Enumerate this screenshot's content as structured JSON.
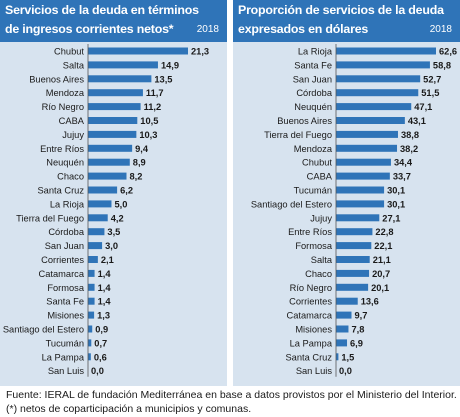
{
  "left_panel": {
    "title_line1": "Servicios de la deuda en términos",
    "title_line2": "de ingresos corrientes netos*",
    "year": "2018"
  },
  "right_panel": {
    "title_line1": "Proporción de servicios de la deuda",
    "title_line2": "expresados en dólares",
    "year": "2018"
  },
  "footer": {
    "source": "Fuente: IERAL de fundación Mediterránea en base a datos provistos por el Ministerio del Interior.",
    "note": "(*) netos de coparticipación a municipios y comunas."
  },
  "colors": {
    "header_bg": "#2f74b8",
    "panel_bg": "#d7e3ef",
    "bar": "#2f74b8"
  },
  "chart_data": [
    {
      "type": "bar",
      "orientation": "horizontal",
      "title": "Servicios de la deuda en términos de ingresos corrientes netos*",
      "categories": [
        "Chubut",
        "Salta",
        "Buenos Aires",
        "Mendoza",
        "Río Negro",
        "CABA",
        "Jujuy",
        "Entre Ríos",
        "Neuquén",
        "Chaco",
        "Santa Cruz",
        "La Rioja",
        "Tierra del Fuego",
        "Córdoba",
        "San Juan",
        "Corrientes",
        "Catamarca",
        "Formosa",
        "Santa Fe",
        "Misiones",
        "Santiago del Estero",
        "Tucumán",
        "La Pampa",
        "San Luis"
      ],
      "values": [
        21.3,
        14.9,
        13.5,
        11.7,
        11.2,
        10.5,
        10.3,
        9.4,
        8.9,
        8.2,
        6.2,
        5.0,
        4.2,
        3.5,
        3.0,
        2.1,
        1.4,
        1.4,
        1.4,
        1.3,
        0.9,
        0.7,
        0.6,
        0.0
      ],
      "value_labels": [
        "21,3",
        "14,9",
        "13,5",
        "11,7",
        "11,2",
        "10,5",
        "10,3",
        "9,4",
        "8,9",
        "8,2",
        "6,2",
        "5,0",
        "4,2",
        "3,5",
        "3,0",
        "2,1",
        "1,4",
        "1,4",
        "1,4",
        "1,3",
        "0,9",
        "0,7",
        "0,6",
        "0,0"
      ],
      "xlim": [
        0,
        21.3
      ],
      "grid": false,
      "legend": "none"
    },
    {
      "type": "bar",
      "orientation": "horizontal",
      "title": "Proporción de servicios de la deuda expresados en dólares",
      "categories": [
        "La Rioja",
        "Santa Fe",
        "San Juan",
        "Córdoba",
        "Neuquén",
        "Buenos Aires",
        "Tierra del Fuego",
        "Mendoza",
        "Chubut",
        "CABA",
        "Tucumán",
        "Santiago del Estero",
        "Jujuy",
        "Entre Ríos",
        "Formosa",
        "Salta",
        "Chaco",
        "Río Negro",
        "Corrientes",
        "Catamarca",
        "Misiones",
        "La Pampa",
        "Santa Cruz",
        "San Luis"
      ],
      "values": [
        62.6,
        58.8,
        52.7,
        51.5,
        47.1,
        43.1,
        38.8,
        38.2,
        34.4,
        33.7,
        30.1,
        30.1,
        27.1,
        22.8,
        22.1,
        21.1,
        20.7,
        20.1,
        13.6,
        9.7,
        7.8,
        6.9,
        1.5,
        0.0
      ],
      "value_labels": [
        "62,6",
        "58,8",
        "52,7",
        "51,5",
        "47,1",
        "43,1",
        "38,8",
        "38,2",
        "34,4",
        "33,7",
        "30,1",
        "30,1",
        "27,1",
        "22,8",
        "22,1",
        "21,1",
        "20,7",
        "20,1",
        "13,6",
        "9,7",
        "7,8",
        "6,9",
        "1,5",
        "0,0"
      ],
      "xlim": [
        0,
        62.6
      ],
      "grid": false,
      "legend": "none"
    }
  ]
}
